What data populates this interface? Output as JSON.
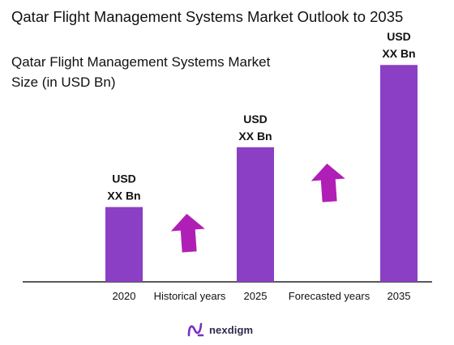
{
  "chart_data": {
    "type": "bar",
    "title": "Qatar Flight Management Systems Market Outlook to 2035",
    "subtitle": "Qatar Flight Management Systems Market\n Size (in USD Bn)",
    "categories": [
      "2020",
      "2025",
      "2035"
    ],
    "values": [
      1.0,
      1.8,
      2.9
    ],
    "value_labels": [
      [
        "USD",
        "XX Bn"
      ],
      [
        "USD",
        "XX Bn"
      ],
      [
        "USD",
        "XX Bn"
      ]
    ],
    "ylim": [
      0,
      3.0
    ],
    "grid": false,
    "bar_color": "#8a3fc4",
    "annotations": [
      {
        "text": "Historical years",
        "arrow": "up"
      },
      {
        "text": "Forecasted years",
        "arrow": "up"
      }
    ],
    "arrow_color": "#b01fb5"
  },
  "logo": {
    "name": "nexdigm",
    "icon": "nexdigm-logo-icon",
    "color": "#7b2fbf"
  }
}
